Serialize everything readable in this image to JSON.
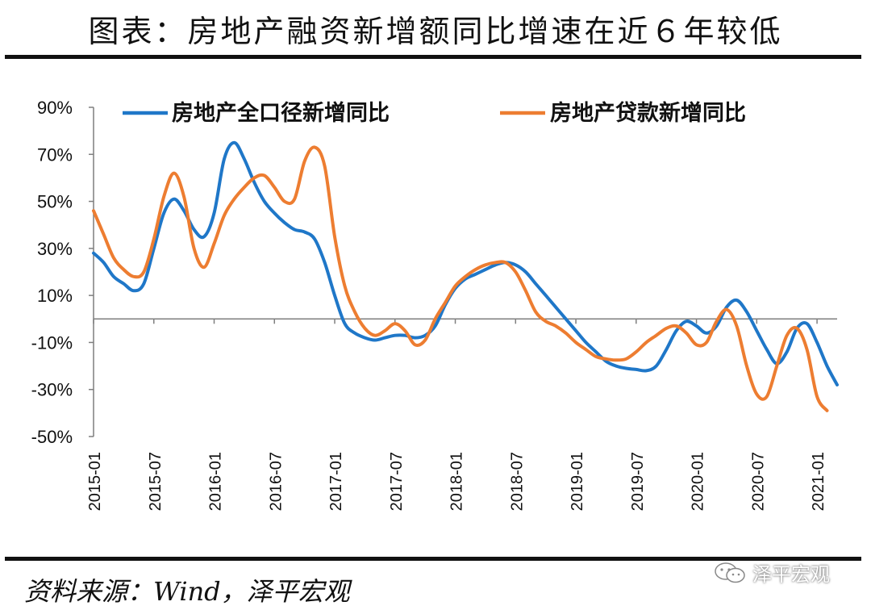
{
  "header": {
    "title": "图表：房地产融资新增额同比增速在近６年较低"
  },
  "footer": {
    "source": "资料来源：Wind，泽平宏观"
  },
  "watermark": {
    "text": "泽平宏观",
    "icon": "wechat-icon"
  },
  "colors": {
    "series1": "#1f77c8",
    "series2": "#ed7d31",
    "axis": "#7f7f7f"
  },
  "chart_data": {
    "type": "line",
    "ylim": [
      -50,
      90
    ],
    "yticks": [
      90,
      70,
      50,
      30,
      10,
      -10,
      -30,
      -50
    ],
    "ytick_labels": [
      "90%",
      "70%",
      "50%",
      "30%",
      "10%",
      "-10%",
      "-30%",
      "-50%"
    ],
    "xtick_labels": [
      "2015-01",
      "2015-07",
      "2016-01",
      "2016-07",
      "2017-01",
      "2017-07",
      "2018-01",
      "2018-07",
      "2019-01",
      "2019-07",
      "2020-01",
      "2020-07",
      "2021-01"
    ],
    "legend_position": "top",
    "grid": false,
    "series": [
      {
        "name": "房地产全口径新增同比",
        "color": "#1f77c8",
        "points": [
          [
            0,
            28
          ],
          [
            1,
            24
          ],
          [
            2,
            18
          ],
          [
            3,
            15
          ],
          [
            4,
            12
          ],
          [
            5,
            15
          ],
          [
            6,
            30
          ],
          [
            7,
            45
          ],
          [
            8,
            51
          ],
          [
            9,
            46
          ],
          [
            10,
            38
          ],
          [
            11,
            35
          ],
          [
            12,
            45
          ],
          [
            13,
            68
          ],
          [
            14,
            75
          ],
          [
            15,
            68
          ],
          [
            16,
            58
          ],
          [
            17,
            50
          ],
          [
            18,
            45
          ],
          [
            19,
            41
          ],
          [
            20,
            38
          ],
          [
            21,
            37
          ],
          [
            22,
            34
          ],
          [
            23,
            24
          ],
          [
            24,
            10
          ],
          [
            25,
            -2
          ],
          [
            26,
            -6
          ],
          [
            27,
            -8
          ],
          [
            28,
            -9
          ],
          [
            29,
            -8
          ],
          [
            30,
            -7
          ],
          [
            31,
            -7
          ],
          [
            32,
            -8
          ],
          [
            33,
            -7
          ],
          [
            34,
            -3
          ],
          [
            35,
            6
          ],
          [
            36,
            13
          ],
          [
            37,
            17
          ],
          [
            38,
            19
          ],
          [
            39,
            21
          ],
          [
            40,
            23
          ],
          [
            41,
            24
          ],
          [
            42,
            23
          ],
          [
            43,
            20
          ],
          [
            44,
            15
          ],
          [
            45,
            10
          ],
          [
            46,
            5
          ],
          [
            47,
            0
          ],
          [
            48,
            -5
          ],
          [
            49,
            -10
          ],
          [
            50,
            -14
          ],
          [
            51,
            -18
          ],
          [
            52,
            -20
          ],
          [
            53,
            -21
          ],
          [
            54,
            -21.5
          ],
          [
            55,
            -22
          ],
          [
            56,
            -20
          ],
          [
            57,
            -13
          ],
          [
            58,
            -5
          ],
          [
            59,
            -1
          ],
          [
            60,
            -3
          ],
          [
            61,
            -6
          ],
          [
            62,
            -3
          ],
          [
            63,
            5
          ],
          [
            64,
            8
          ],
          [
            65,
            3
          ],
          [
            66,
            -5
          ],
          [
            67,
            -13
          ],
          [
            68,
            -19
          ],
          [
            69,
            -14
          ],
          [
            70,
            -4
          ],
          [
            71,
            -2
          ],
          [
            72,
            -10
          ],
          [
            73,
            -20
          ],
          [
            74,
            -28
          ]
        ]
      },
      {
        "name": "房地产贷款新增同比",
        "color": "#ed7d31",
        "points": [
          [
            0,
            46
          ],
          [
            1,
            36
          ],
          [
            2,
            26
          ],
          [
            3,
            21
          ],
          [
            4,
            18
          ],
          [
            5,
            20
          ],
          [
            6,
            34
          ],
          [
            7,
            52
          ],
          [
            8,
            62
          ],
          [
            9,
            52
          ],
          [
            10,
            30
          ],
          [
            11,
            22
          ],
          [
            12,
            32
          ],
          [
            13,
            44
          ],
          [
            14,
            51
          ],
          [
            15,
            56
          ],
          [
            16,
            60
          ],
          [
            17,
            61
          ],
          [
            18,
            56
          ],
          [
            19,
            50
          ],
          [
            20,
            51
          ],
          [
            21,
            67
          ],
          [
            22,
            73
          ],
          [
            23,
            65
          ],
          [
            24,
            35
          ],
          [
            25,
            14
          ],
          [
            26,
            3
          ],
          [
            27,
            -4
          ],
          [
            28,
            -7
          ],
          [
            29,
            -5
          ],
          [
            30,
            -2
          ],
          [
            31,
            -5
          ],
          [
            32,
            -11
          ],
          [
            33,
            -9
          ],
          [
            34,
            0
          ],
          [
            35,
            7
          ],
          [
            36,
            14
          ],
          [
            37,
            18
          ],
          [
            38,
            21
          ],
          [
            39,
            23
          ],
          [
            40,
            24
          ],
          [
            41,
            24
          ],
          [
            42,
            20
          ],
          [
            43,
            12
          ],
          [
            44,
            3
          ],
          [
            45,
            -1
          ],
          [
            46,
            -3
          ],
          [
            47,
            -6
          ],
          [
            48,
            -10
          ],
          [
            49,
            -13
          ],
          [
            50,
            -16
          ],
          [
            51,
            -17
          ],
          [
            52,
            -17.5
          ],
          [
            53,
            -17
          ],
          [
            54,
            -14
          ],
          [
            55,
            -10
          ],
          [
            56,
            -7
          ],
          [
            57,
            -4
          ],
          [
            58,
            -3
          ],
          [
            59,
            -6
          ],
          [
            60,
            -11
          ],
          [
            61,
            -10
          ],
          [
            62,
            -1
          ],
          [
            63,
            4
          ],
          [
            64,
            -3
          ],
          [
            65,
            -20
          ],
          [
            66,
            -32
          ],
          [
            67,
            -33
          ],
          [
            68,
            -20
          ],
          [
            69,
            -7
          ],
          [
            70,
            -4
          ],
          [
            71,
            -13
          ],
          [
            72,
            -33
          ],
          [
            73,
            -39
          ]
        ]
      }
    ]
  }
}
